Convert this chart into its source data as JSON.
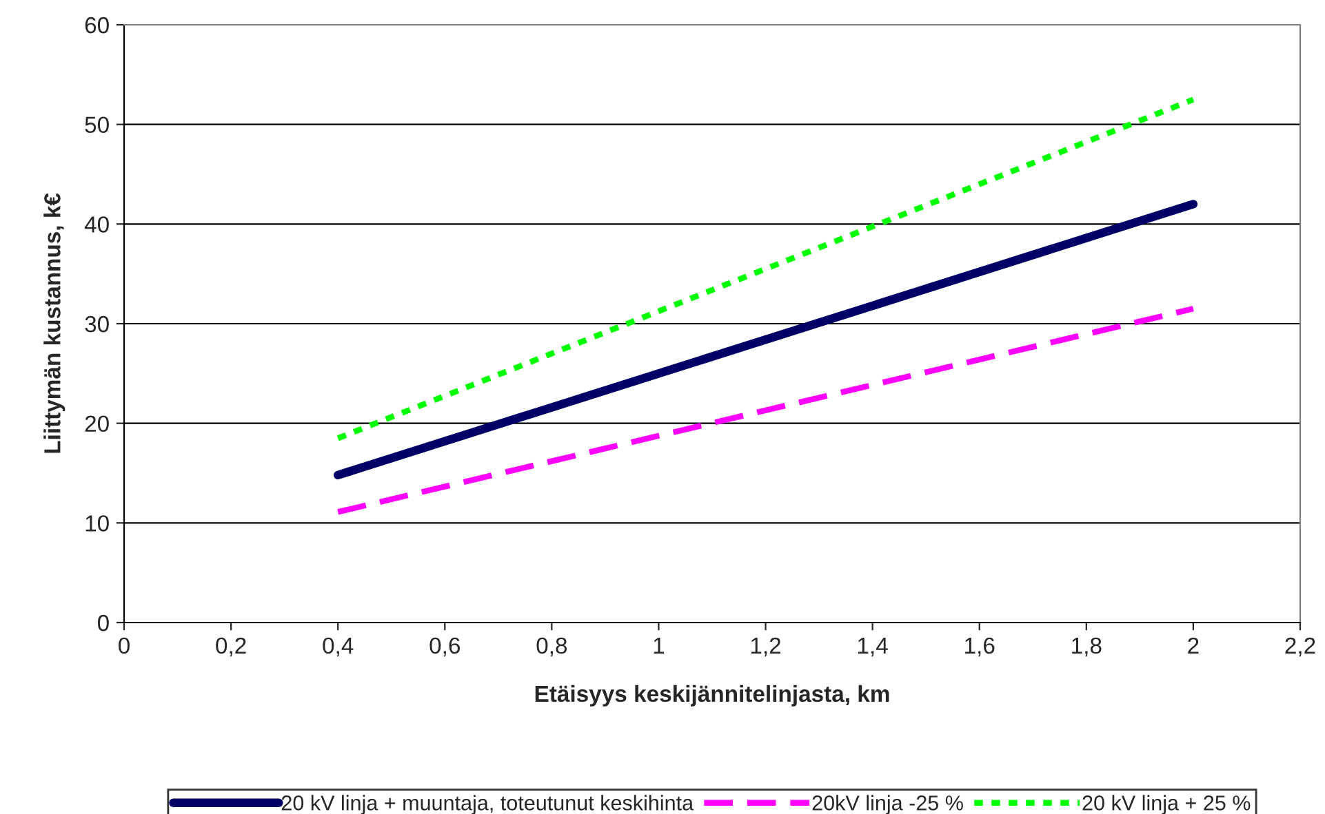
{
  "chart_data": {
    "type": "line",
    "xlabel": "Etäisyys keskijännitelinjasta, km",
    "ylabel": "Liittymän kustannus, k€",
    "xlim": [
      0,
      2.2
    ],
    "xticks": [
      0,
      {
        "value": 0.2,
        "label": "0,2"
      },
      {
        "value": 0.4,
        "label": "0,4"
      },
      {
        "value": 0.6,
        "label": "0,6"
      },
      {
        "value": 0.8,
        "label": "0,8"
      },
      1,
      {
        "value": 1.2,
        "label": "1,2"
      },
      {
        "value": 1.4,
        "label": "1,4"
      },
      {
        "value": 1.6,
        "label": "1,6"
      },
      {
        "value": 1.8,
        "label": "1,8"
      },
      2,
      {
        "value": 2.2,
        "label": "2,2"
      }
    ],
    "ylim": [
      0,
      60
    ],
    "yticks": [
      0,
      10,
      20,
      30,
      40,
      50,
      60
    ],
    "grid": "y",
    "legend": "bottom",
    "marker": "none",
    "x": [
      0.4,
      2
    ],
    "series": [
      {
        "name": "20 kV linja + muuntaja, toteutunut keskihinta",
        "color": "#000066",
        "values": [
          14.8,
          42
        ],
        "line_style": "solid"
      },
      {
        "name": "20kV linja -25 %",
        "color": "#ff00ff",
        "values": [
          11.1,
          31.5
        ],
        "line_style": "dashed"
      },
      {
        "name": "20 kV linja + 25 %",
        "color": "#00ff00",
        "values": [
          18.5,
          52.5
        ],
        "line_style": "dotted"
      }
    ]
  }
}
